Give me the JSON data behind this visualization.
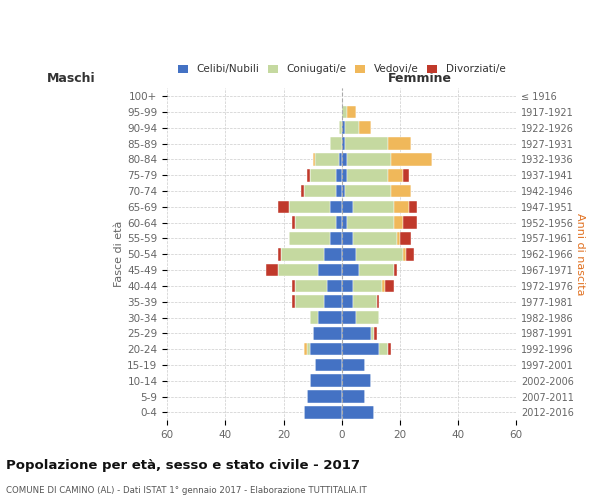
{
  "age_groups": [
    "0-4",
    "5-9",
    "10-14",
    "15-19",
    "20-24",
    "25-29",
    "30-34",
    "35-39",
    "40-44",
    "45-49",
    "50-54",
    "55-59",
    "60-64",
    "65-69",
    "70-74",
    "75-79",
    "80-84",
    "85-89",
    "90-94",
    "95-99",
    "100+"
  ],
  "birth_years": [
    "2012-2016",
    "2007-2011",
    "2002-2006",
    "1997-2001",
    "1992-1996",
    "1987-1991",
    "1982-1986",
    "1977-1981",
    "1972-1976",
    "1967-1971",
    "1962-1966",
    "1957-1961",
    "1952-1956",
    "1947-1951",
    "1942-1946",
    "1937-1941",
    "1932-1936",
    "1927-1931",
    "1922-1926",
    "1917-1921",
    "≤ 1916"
  ],
  "colors": {
    "celibe": "#4472c4",
    "coniugato": "#c5d9a0",
    "vedovo": "#f0b85a",
    "divorziato": "#c0392b"
  },
  "maschi": {
    "celibe": [
      13,
      12,
      11,
      9,
      11,
      10,
      8,
      6,
      5,
      8,
      6,
      4,
      2,
      4,
      2,
      2,
      1,
      0,
      0,
      0,
      0
    ],
    "coniugato": [
      0,
      0,
      0,
      0,
      1,
      0,
      3,
      10,
      11,
      14,
      15,
      14,
      14,
      14,
      11,
      9,
      8,
      4,
      1,
      0,
      0
    ],
    "vedovo": [
      0,
      0,
      0,
      0,
      1,
      0,
      0,
      0,
      0,
      0,
      0,
      0,
      0,
      0,
      0,
      0,
      1,
      0,
      0,
      0,
      0
    ],
    "divorziato": [
      0,
      0,
      0,
      0,
      0,
      0,
      0,
      1,
      1,
      4,
      1,
      0,
      1,
      4,
      1,
      1,
      0,
      0,
      0,
      0,
      0
    ]
  },
  "femmine": {
    "celibe": [
      11,
      8,
      10,
      8,
      13,
      10,
      5,
      4,
      4,
      6,
      5,
      4,
      2,
      4,
      1,
      2,
      2,
      1,
      1,
      0,
      0
    ],
    "coniugato": [
      0,
      0,
      0,
      0,
      3,
      1,
      8,
      8,
      10,
      12,
      16,
      15,
      16,
      14,
      16,
      14,
      15,
      15,
      5,
      2,
      0
    ],
    "vedovo": [
      0,
      0,
      0,
      0,
      0,
      0,
      0,
      0,
      1,
      0,
      1,
      1,
      3,
      5,
      7,
      5,
      14,
      8,
      4,
      3,
      0
    ],
    "divorziato": [
      0,
      0,
      0,
      0,
      1,
      1,
      0,
      1,
      3,
      1,
      3,
      4,
      5,
      3,
      0,
      2,
      0,
      0,
      0,
      0,
      0
    ]
  },
  "xlim": 60,
  "title": "Popolazione per età, sesso e stato civile - 2017",
  "subtitle": "COMUNE DI CAMINO (AL) - Dati ISTAT 1° gennaio 2017 - Elaborazione TUTTITALIA.IT",
  "ylabel_left": "Fasce di età",
  "ylabel_right": "Anni di nascita",
  "xlabel_left": "Maschi",
  "xlabel_right": "Femmine",
  "background_color": "#ffffff",
  "grid_color": "#cccccc"
}
